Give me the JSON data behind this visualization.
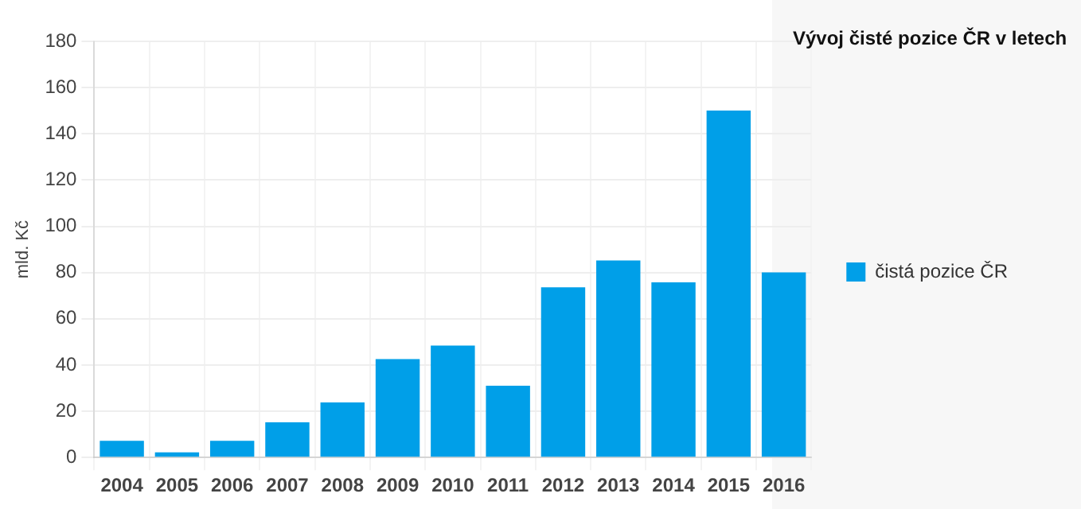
{
  "chart_data": {
    "type": "bar",
    "title": "Vývoj čisté pozice ČR v letech",
    "ylabel": "mld. Kč",
    "categories": [
      "2004",
      "2005",
      "2006",
      "2007",
      "2008",
      "2009",
      "2010",
      "2011",
      "2012",
      "2013",
      "2014",
      "2015",
      "2016"
    ],
    "series": [
      {
        "name": "čistá pozice ČR",
        "color": "#009fe8",
        "values": [
          7.2,
          2.2,
          7.2,
          15.2,
          23.8,
          42.6,
          48.4,
          31,
          73.6,
          85.2,
          75.8,
          150.1,
          80.1
        ]
      }
    ],
    "ylim": [
      0,
      180
    ],
    "yticks": [
      0,
      20,
      40,
      60,
      80,
      100,
      120,
      140,
      160,
      180
    ],
    "grid": true,
    "legend": "right"
  }
}
